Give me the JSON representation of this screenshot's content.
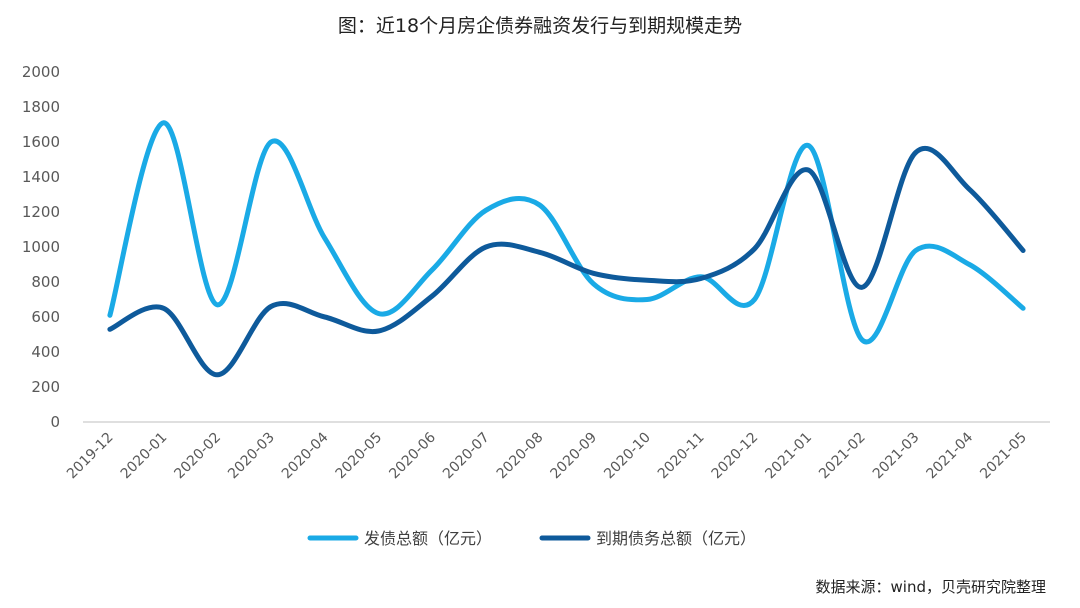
{
  "chart_data": {
    "type": "line",
    "title": "图：近18个月房企债券融资发行与到期规模走势",
    "categories": [
      "2019-12",
      "2020-01",
      "2020-02",
      "2020-03",
      "2020-04",
      "2020-05",
      "2020-06",
      "2020-07",
      "2020-08",
      "2020-09",
      "2020-10",
      "2020-11",
      "2020-12",
      "2021-01",
      "2021-02",
      "2021-03",
      "2021-04",
      "2021-05"
    ],
    "ylim": [
      0,
      2000
    ],
    "yticks": [
      0,
      200,
      400,
      600,
      800,
      1000,
      1200,
      1400,
      1600,
      1800,
      2000
    ],
    "grid": false,
    "legend_position": "bottom",
    "series": [
      {
        "name": "发债总额（亿元）",
        "color": "#1aaae6",
        "values": [
          610,
          1710,
          670,
          1600,
          1050,
          620,
          870,
          1210,
          1240,
          790,
          700,
          830,
          700,
          1580,
          470,
          980,
          900,
          650
        ]
      },
      {
        "name": "到期债务总额（亿元）",
        "color": "#0e5a9b",
        "values": [
          530,
          650,
          270,
          660,
          600,
          520,
          720,
          1000,
          970,
          850,
          810,
          820,
          990,
          1440,
          770,
          1540,
          1330,
          980
        ]
      }
    ],
    "source": "数据来源：wind，贝壳研究院整理"
  }
}
